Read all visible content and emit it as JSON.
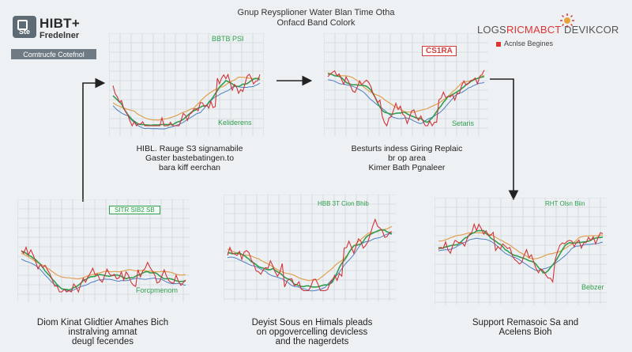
{
  "logo_left": {
    "name_line1": "HIBT+",
    "name_line2": "Fredelner",
    "tile_text": "Ste",
    "bar_text": "Comtrucfe Cotefnol"
  },
  "title": {
    "line1": "Gnup Reysplioner Water Blan Time Otha",
    "line2": "Onfacd Band Colork"
  },
  "logo_right": {
    "part1": "LOGS",
    "part2": "RICMABCT",
    "part3": "DEVIKCOR",
    "subtitle": "Acnlse Begines"
  },
  "charts": [
    {
      "label_top": "BBTB PSI",
      "label_box": "",
      "label_bottom": "Keliderens",
      "caption": [
        "HIBL. Rauge S3 signamabile",
        "Gaster bastebatingen.to",
        "bara kiff eerchan"
      ]
    },
    {
      "label_top": "",
      "label_box": "CS1RA",
      "label_bottom": "Setaris",
      "caption": [
        "Besturts indess Giring Replaic",
        "br op area",
        "Kimer Bath Pgnaleer"
      ]
    },
    {
      "label_top": "",
      "label_box": "SITR SIB2 SB",
      "label_bottom": "Forcpmenom",
      "caption": [
        "Diom Kinat Glidtier Amahes Bich",
        "instralving amnat",
        "deugl fecendes"
      ]
    },
    {
      "label_top": "HBB  3T Cion  Bhib",
      "label_box": "",
      "label_bottom": "",
      "caption": [
        "Deyist Sous en Himals pleads",
        "on opgovercelling devicless",
        "and the nagerdets"
      ]
    },
    {
      "label_top": "RHT Olsn Biin",
      "label_box": "",
      "label_bottom": "Bebzer",
      "caption": [
        "Support Remasoic Sa and",
        "Acelens Bioh"
      ]
    }
  ],
  "colors": {
    "accent": "#d33b3b",
    "line_green": "#2e9e4f",
    "line_orange": "#e0a050",
    "line_blue": "#4f7fc0",
    "line_red": "#d0343a",
    "grid": "#c8ced3"
  }
}
